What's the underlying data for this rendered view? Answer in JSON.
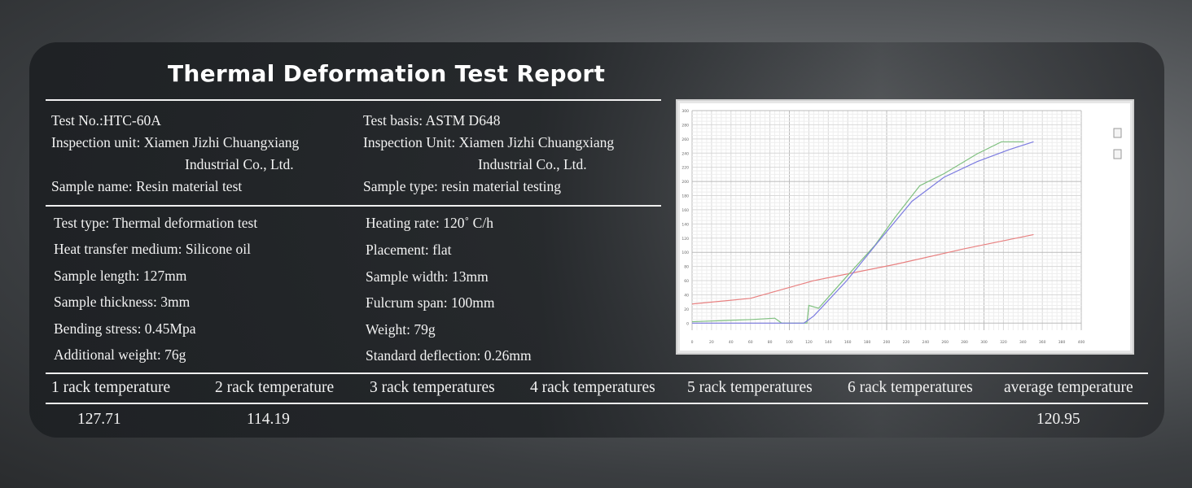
{
  "title": "Thermal Deformation Test Report",
  "info_left": [
    "Test No.:HTC-60A",
    "Inspection unit: Xiamen Jizhi Chuangxiang",
    "Industrial Co., Ltd.",
    "Sample name: Resin material test"
  ],
  "info_right": [
    "Test basis: ASTM D648",
    "Inspection Unit: Xiamen Jizhi Chuangxiang",
    "Industrial Co., Ltd.",
    "Sample type: resin material testing"
  ],
  "params_left": [
    "Test type: Thermal deformation test",
    "Heat transfer medium: Silicone oil",
    "Sample length: 127mm",
    "Sample thickness: 3mm",
    "Bending stress: 0.45Mpa",
    "Additional weight: 76g"
  ],
  "params_right": [
    "Heating rate: 120˚ C/h",
    "Placement: flat",
    "Sample width: 13mm",
    "Fulcrum span: 100mm",
    "Weight: 79g",
    "Standard deflection: 0.26mm"
  ],
  "table": {
    "headers": [
      "1 rack temperature",
      "2 rack temperature",
      "3 rack temperatures",
      "4 rack temperatures",
      "5 rack temperatures",
      "6 rack temperatures",
      "average temperature"
    ],
    "values": [
      "127.71",
      "114.19",
      "",
      "",
      "",
      "",
      "120.95"
    ]
  },
  "chart_data": {
    "type": "line",
    "xlim": [
      0,
      400
    ],
    "ylim": [
      -10,
      300
    ],
    "x_ticks": [
      0,
      20,
      40,
      60,
      80,
      100,
      120,
      140,
      160,
      180,
      200,
      220,
      240,
      260,
      280,
      300,
      320,
      340,
      360,
      380,
      400
    ],
    "y_ticks": [
      0,
      20,
      40,
      60,
      80,
      100,
      120,
      140,
      160,
      180,
      200,
      220,
      240,
      260,
      280,
      300
    ],
    "grid": true,
    "colors": [
      "#e88080",
      "#7fc07f",
      "#7b7be0"
    ],
    "series": [
      {
        "color": "#e88080",
        "points": [
          [
            0,
            27
          ],
          [
            60,
            35
          ],
          [
            125,
            60
          ],
          [
            209,
            83
          ],
          [
            280,
            105
          ],
          [
            351,
            125
          ]
        ]
      },
      {
        "color": "#7fc07f",
        "points": [
          [
            0,
            2
          ],
          [
            20,
            3
          ],
          [
            60,
            5
          ],
          [
            85,
            7
          ],
          [
            92,
            0
          ],
          [
            118,
            0
          ],
          [
            120,
            25
          ],
          [
            130,
            21
          ],
          [
            159,
            66
          ],
          [
            188,
            110
          ],
          [
            209,
            150
          ],
          [
            234,
            194
          ],
          [
            259,
            211
          ],
          [
            293,
            239
          ],
          [
            318,
            256
          ],
          [
            341,
            256
          ]
        ]
      },
      {
        "color": "#7b7be0",
        "points": [
          [
            0,
            0
          ],
          [
            115,
            0
          ],
          [
            125,
            10
          ],
          [
            159,
            60
          ],
          [
            192,
            116
          ],
          [
            226,
            172
          ],
          [
            259,
            206
          ],
          [
            293,
            228
          ],
          [
            326,
            245
          ],
          [
            351,
            256
          ]
        ]
      }
    ]
  }
}
